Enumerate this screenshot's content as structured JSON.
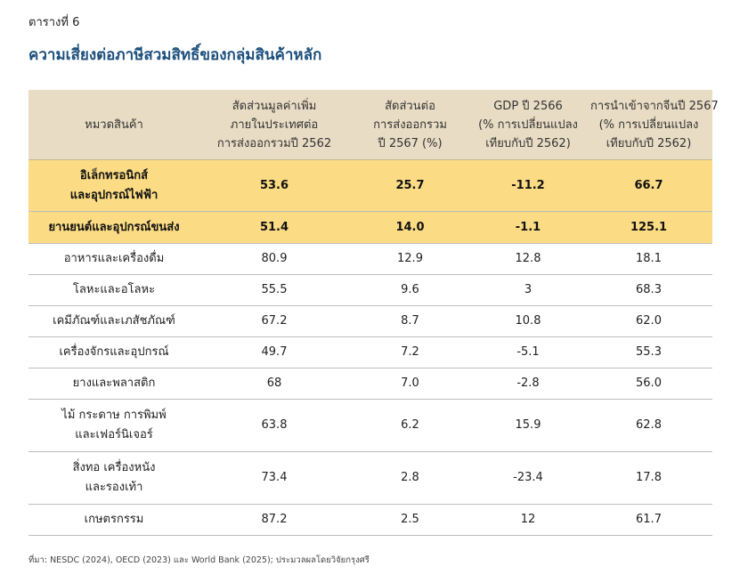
{
  "table_label": "ตารางที่ 6",
  "title": "ความเสี่ยงต่อภาษีสวมสิทธิ์ของกลุ่มสินค้าหลัก",
  "headers": [
    [
      "หมวดสินค้า"
    ],
    [
      "สัดส่วนมูลค่าเพิ่ม",
      "ภายในประเทศต่อ",
      "การส่งออกรวมปี 2562"
    ],
    [
      "สัดส่วนต่อ",
      "การส่งออกรวม",
      "ปี 2567 (%)"
    ],
    [
      "GDP ปี 2566",
      "(% การเปลี่ยนแปลง",
      "เทียบกับปี 2562)"
    ],
    [
      "การนำเข้าจากจีนปี 2567",
      "(% การเปลี่ยนแปลง",
      "เทียบกับปี 2562)"
    ]
  ],
  "rows": [
    {
      "name": [
        "อิเล็กทรอนิกส์",
        "และอุปกรณ์ไฟฟ้า"
      ],
      "v1": "53.6",
      "v2": "25.7",
      "v3": "-11.2",
      "v4": "66.7"
    },
    {
      "name": [
        "ยานยนต์และอุปกรณ์ขนส่ง"
      ],
      "v1": "51.4",
      "v2": "14.0",
      "v3": "-1.1",
      "v4": "125.1"
    },
    {
      "name": [
        "อาหารและเครื่องดื่ม"
      ],
      "v1": "80.9",
      "v2": "12.9",
      "v3": "12.8",
      "v4": "18.1"
    },
    {
      "name": [
        "โลหะและอโลหะ"
      ],
      "v1": "55.5",
      "v2": "9.6",
      "v3": "3",
      "v4": "68.3"
    },
    {
      "name": [
        "เคมีภัณฑ์และเภสัชภัณฑ์"
      ],
      "v1": "67.2",
      "v2": "8.7",
      "v3": "10.8",
      "v4": "62.0"
    },
    {
      "name": [
        "เครื่องจักรและอุปกรณ์"
      ],
      "v1": "49.7",
      "v2": "7.2",
      "v3": "-5.1",
      "v4": "55.3"
    },
    {
      "name": [
        "ยางและพลาสติก"
      ],
      "v1": "68",
      "v2": "7.0",
      "v3": "-2.8",
      "v4": "56.0"
    },
    {
      "name": [
        "ไม้ กระดาษ การพิมพ์",
        "และเฟอร์นิเจอร์"
      ],
      "v1": "63.8",
      "v2": "6.2",
      "v3": "15.9",
      "v4": "62.8"
    },
    {
      "name": [
        "สิ่งทอ เครื่องหนัง",
        "และรองเท้า"
      ],
      "v1": "73.4",
      "v2": "2.8",
      "v3": "-23.4",
      "v4": "17.8"
    },
    {
      "name": [
        "เกษตรกรรม"
      ],
      "v1": "87.2",
      "v2": "2.5",
      "v3": "12",
      "v4": "61.7"
    }
  ],
  "source": "ที่มา: NESDC (2024), OECD (2023) และ World Bank (2025); ประมวลผลโดยวิจัยกรุงศรี"
}
